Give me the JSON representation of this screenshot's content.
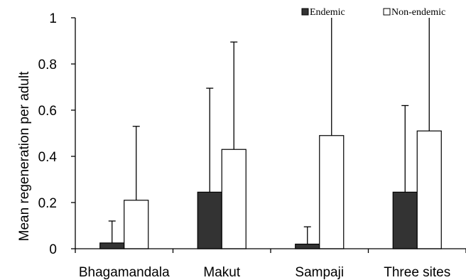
{
  "chart_data": {
    "type": "bar",
    "title": "",
    "xlabel": "",
    "ylabel": "Mean regeneration per adult",
    "ylim": [
      0,
      1
    ],
    "yticks": [
      "0",
      "0.2",
      "0.4",
      "0.6",
      "0.8",
      "1"
    ],
    "categories": [
      "Bhagamandala",
      "Makut",
      "Sampaji",
      "Three sites"
    ],
    "legend_position": "top-right",
    "grid": false,
    "series": [
      {
        "name": "Endemic",
        "color": "#333333",
        "values": [
          0.025,
          0.245,
          0.02,
          0.245
        ],
        "error_upper": [
          0.12,
          0.695,
          0.095,
          0.62
        ]
      },
      {
        "name": "Non-endemic",
        "color": "#ffffff",
        "values": [
          0.21,
          0.43,
          0.49,
          0.51
        ],
        "error_upper": [
          0.53,
          0.895,
          1.0,
          1.0
        ]
      }
    ]
  }
}
